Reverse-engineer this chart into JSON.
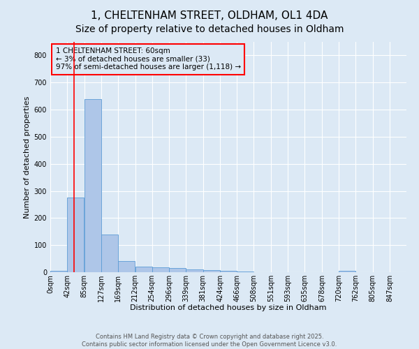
{
  "title_line1": "1, CHELTENHAM STREET, OLDHAM, OL1 4DA",
  "title_line2": "Size of property relative to detached houses in Oldham",
  "xlabel": "Distribution of detached houses by size in Oldham",
  "ylabel": "Number of detached properties",
  "annotation_text": "1 CHELTENHAM STREET: 60sqm\n← 3% of detached houses are smaller (33)\n97% of semi-detached houses are larger (1,118) →",
  "footer_line1": "Contains HM Land Registry data © Crown copyright and database right 2025.",
  "footer_line2": "Contains public sector information licensed under the Open Government Licence v3.0.",
  "bar_color": "#aec6e8",
  "bar_edge_color": "#5b9bd5",
  "annotation_box_color": "#ff0000",
  "vline_color": "#ff0000",
  "background_color": "#dce9f5",
  "grid_color": "#ffffff",
  "bin_labels": [
    "0sqm",
    "42sqm",
    "85sqm",
    "127sqm",
    "169sqm",
    "212sqm",
    "254sqm",
    "296sqm",
    "339sqm",
    "381sqm",
    "424sqm",
    "466sqm",
    "508sqm",
    "551sqm",
    "593sqm",
    "635sqm",
    "678sqm",
    "720sqm",
    "762sqm",
    "805sqm",
    "847sqm"
  ],
  "bar_values": [
    5,
    275,
    640,
    140,
    40,
    20,
    18,
    15,
    10,
    8,
    4,
    2,
    1,
    0,
    0,
    0,
    0,
    5,
    0,
    0,
    0
  ],
  "bin_edges": [
    0,
    42,
    85,
    127,
    169,
    212,
    254,
    296,
    339,
    381,
    424,
    466,
    508,
    551,
    593,
    635,
    678,
    720,
    762,
    805,
    847
  ],
  "vline_x": 60,
  "ylim": [
    0,
    850
  ],
  "yticks": [
    0,
    100,
    200,
    300,
    400,
    500,
    600,
    700,
    800
  ],
  "title_fontsize": 11,
  "axis_label_fontsize": 8,
  "tick_fontsize": 7,
  "annotation_fontsize": 7.5,
  "footer_fontsize": 6
}
